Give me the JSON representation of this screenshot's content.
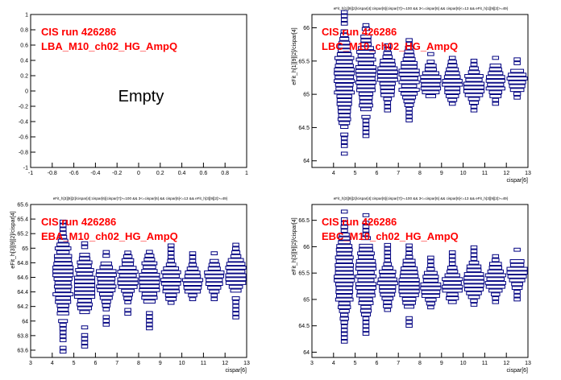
{
  "chart_data": [
    {
      "type": "heatmap",
      "panel": "LBA",
      "title": "",
      "label_run": "CIS run 426286",
      "label_channel": "LBA_M10_ch02_HG_AmpQ",
      "empty_text": "Empty",
      "xlabel": "",
      "ylabel": "",
      "xlim": [
        -1,
        1
      ],
      "ylim": [
        -1,
        1
      ],
      "xticks": [
        "-1",
        "-0.8",
        "-0.6",
        "-0.4",
        "-0.2",
        "0",
        "0.2",
        "0.4",
        "0.6",
        "0.8",
        "1"
      ],
      "yticks": [
        "-1",
        "-0.8",
        "-0.6",
        "-0.4",
        "-0.2",
        "0",
        "0.2",
        "0.4",
        "0.6",
        "0.8",
        "1"
      ],
      "grid": false,
      "x_centers": [],
      "columns": []
    },
    {
      "type": "heatmap",
      "panel": "LBC",
      "title": "eFit_h[1][9][2]/cispar[4]:cispar[6]{cispar[7]>=100 && 3<=cispar[6] && cispar[6]<=13 && eFit_h[1][9][2]>=49}",
      "label_run": "CIS run 426286",
      "label_channel": "LBC_M10_ch02_HG_AmpQ",
      "xlabel": "cispar[6]",
      "ylabel": "eFit_h[1][9][2]/cispar[4]",
      "xlim": [
        3,
        13
      ],
      "ylim": [
        63.9,
        66.2
      ],
      "xticks": [
        "4",
        "5",
        "6",
        "7",
        "8",
        "9",
        "10",
        "11",
        "12",
        "13"
      ],
      "yticks": [
        "64",
        "64.5",
        "65",
        "65.5",
        "66"
      ],
      "grid": false,
      "x_centers": [
        4.5,
        5.5,
        6.5,
        7.5,
        8.5,
        9.5,
        10.5,
        11.5,
        12.5
      ],
      "columns": [
        {
          "y_low": 64.05,
          "y_high": 66.25,
          "peak": 65.2
        },
        {
          "y_low": 64.2,
          "y_high": 66.15,
          "peak": 65.3
        },
        {
          "y_low": 64.7,
          "y_high": 65.75,
          "peak": 65.25
        },
        {
          "y_low": 64.55,
          "y_high": 65.85,
          "peak": 65.25
        },
        {
          "y_low": 64.8,
          "y_high": 65.65,
          "peak": 65.2
        },
        {
          "y_low": 64.8,
          "y_high": 65.65,
          "peak": 65.2
        },
        {
          "y_low": 64.7,
          "y_high": 65.55,
          "peak": 65.15
        },
        {
          "y_low": 64.8,
          "y_high": 65.6,
          "peak": 65.2
        },
        {
          "y_low": 64.95,
          "y_high": 65.55,
          "peak": 65.2
        }
      ]
    },
    {
      "type": "heatmap",
      "panel": "EBA",
      "title": "eFit_h[3][9][2]/cispar[4]:cispar[6]{cispar[7]>=100 && 3<=cispar[6] && cispar[6]<=13 && eFit_h[3][9][2]>=49}",
      "label_run": "CIS run 426286",
      "label_channel": "EBA_M10_ch02_HG_AmpQ",
      "xlabel": "cispar[6]",
      "ylabel": "eFit_h[3][9][2]/cispar[4]",
      "xlim": [
        3,
        13
      ],
      "ylim": [
        63.5,
        65.6
      ],
      "xticks": [
        "3",
        "4",
        "5",
        "6",
        "7",
        "8",
        "9",
        "10",
        "11",
        "12",
        "13"
      ],
      "yticks": [
        "63.6",
        "63.8",
        "64",
        "64.2",
        "64.4",
        "64.6",
        "64.8",
        "65",
        "65.2",
        "65.4",
        "65.6"
      ],
      "grid": false,
      "x_centers": [
        4.5,
        5.5,
        6.5,
        7.5,
        8.5,
        9.5,
        10.5,
        11.5,
        12.5
      ],
      "columns": [
        {
          "y_low": 63.58,
          "y_high": 65.4,
          "peak": 64.6
        },
        {
          "y_low": 63.65,
          "y_high": 65.1,
          "peak": 64.5
        },
        {
          "y_low": 63.95,
          "y_high": 64.95,
          "peak": 64.55
        },
        {
          "y_low": 64.1,
          "y_high": 64.95,
          "peak": 64.6
        },
        {
          "y_low": 63.9,
          "y_high": 64.95,
          "peak": 64.55
        },
        {
          "y_low": 64.25,
          "y_high": 65.05,
          "peak": 64.55
        },
        {
          "y_low": 64.3,
          "y_high": 64.95,
          "peak": 64.55
        },
        {
          "y_low": 64.3,
          "y_high": 64.95,
          "peak": 64.6
        },
        {
          "y_low": 64.05,
          "y_high": 65.05,
          "peak": 64.65
        }
      ]
    },
    {
      "type": "heatmap",
      "panel": "EBC",
      "title": "eFit_h[3][9][2]/cispar[4]:cispar[6]{cispar[7]>=100 && 3<=cispar[6] && cispar[6]<=13 && eFit_h[3][9][2]>=49}",
      "label_run": "CIS run 426286",
      "label_channel": "EBC_M10_ch02_HG_AmpQ",
      "xlabel": "cispar[6]",
      "ylabel": "eFit_h[3][9][2]/cispar[4]",
      "xlim": [
        3,
        13
      ],
      "ylim": [
        63.9,
        66.8
      ],
      "xticks": [
        "3",
        "4",
        "5",
        "6",
        "7",
        "8",
        "9",
        "10",
        "11",
        "12",
        "13"
      ],
      "yticks": [
        "64",
        "64.5",
        "65",
        "65.5",
        "66",
        "66.5"
      ],
      "grid": false,
      "x_centers": [
        4.5,
        5.5,
        6.5,
        7.5,
        8.5,
        9.5,
        10.5,
        11.5,
        12.5
      ],
      "columns": [
        {
          "y_low": 64.2,
          "y_high": 66.7,
          "peak": 65.45
        },
        {
          "y_low": 64.35,
          "y_high": 66.6,
          "peak": 65.45
        },
        {
          "y_low": 64.8,
          "y_high": 66.05,
          "peak": 65.3
        },
        {
          "y_low": 64.5,
          "y_high": 66.05,
          "peak": 65.3
        },
        {
          "y_low": 64.85,
          "y_high": 65.85,
          "peak": 65.25
        },
        {
          "y_low": 64.95,
          "y_high": 65.95,
          "peak": 65.3
        },
        {
          "y_low": 64.9,
          "y_high": 66.0,
          "peak": 65.35
        },
        {
          "y_low": 64.95,
          "y_high": 65.95,
          "peak": 65.4
        },
        {
          "y_low": 65.0,
          "y_high": 66.0,
          "peak": 65.5
        }
      ]
    }
  ]
}
